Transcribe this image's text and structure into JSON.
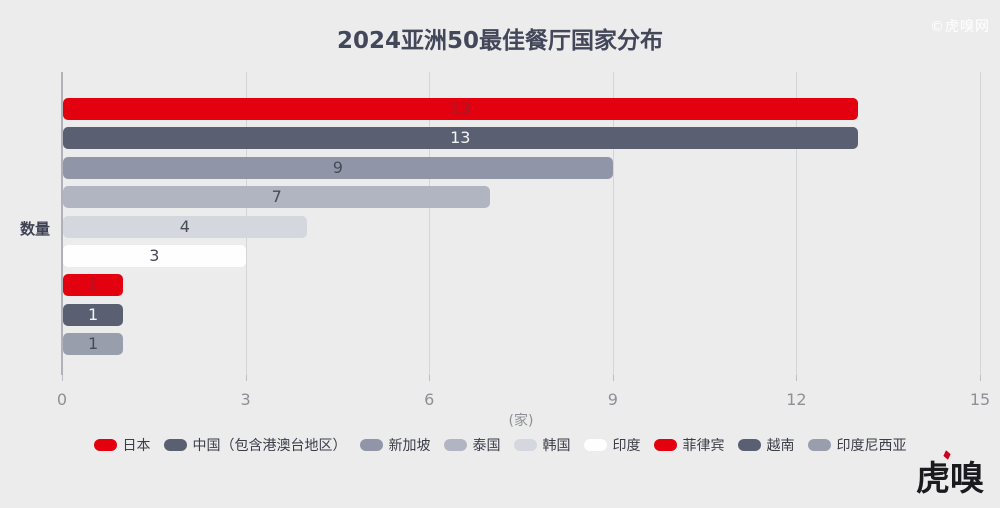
{
  "header": {
    "title": "2024亚洲50最佳餐厅国家分布",
    "watermark": "©虎嗅网"
  },
  "footer": {
    "logo_text": "虎嗅"
  },
  "colors": {
    "background": "#ECECEC",
    "accent_red": "#E3000F",
    "dark_slate": "#5A6071",
    "title_text": "#43475A",
    "axis_text": "#8D9097",
    "grid_line": "#D4D5D9",
    "legend_text": "#3B3E49"
  },
  "chart_data": {
    "type": "bar",
    "orientation": "horizontal",
    "title": "2024亚洲50最佳餐厅国家分布",
    "ylabel": "数量",
    "x_unit_label": "(家)",
    "xlim": [
      0,
      15
    ],
    "x_ticks": [
      0,
      3,
      6,
      9,
      12,
      15
    ],
    "grid": true,
    "legend_position": "bottom",
    "categories": [
      "日本",
      "中国（包含港澳台地区）",
      "新加坡",
      "泰国",
      "韩国",
      "印度",
      "菲律宾",
      "越南",
      "印度尼西亚"
    ],
    "values": [
      13,
      13,
      9,
      7,
      4,
      3,
      1,
      1,
      1
    ],
    "items": [
      {
        "label": "日本",
        "value": 13,
        "color": "#E3000F",
        "value_label_color": "#8A2531"
      },
      {
        "label": "中国（包含港澳台地区）",
        "value": 13,
        "color": "#5A6071",
        "value_label_color": "#F3F4F6"
      },
      {
        "label": "新加坡",
        "value": 9,
        "color": "#9096A8",
        "value_label_color": "#474B58"
      },
      {
        "label": "泰国",
        "value": 7,
        "color": "#B1B5C1",
        "value_label_color": "#474B58"
      },
      {
        "label": "韩国",
        "value": 4,
        "color": "#D4D7DD",
        "value_label_color": "#474B58"
      },
      {
        "label": "印度",
        "value": 3,
        "color": "#FEFEFE",
        "value_label_color": "#474B58"
      },
      {
        "label": "菲律宾",
        "value": 1,
        "color": "#E3000F",
        "value_label_color": "#8A2531"
      },
      {
        "label": "越南",
        "value": 1,
        "color": "#5A6071",
        "value_label_color": "#F3F4F6"
      },
      {
        "label": "印度尼西亚",
        "value": 1,
        "color": "#999EAC",
        "value_label_color": "#474B58"
      }
    ]
  }
}
